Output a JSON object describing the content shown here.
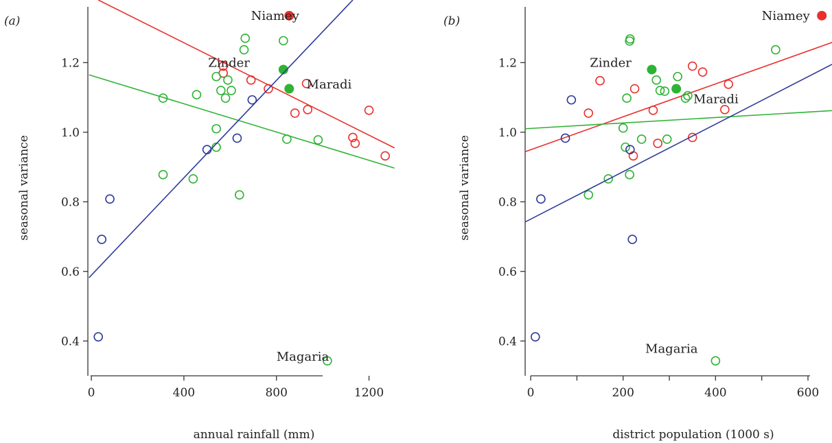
{
  "colors": {
    "red": "#e8302c",
    "green": "#2fb335",
    "blue": "#2e3a9a",
    "axis": "#333333"
  },
  "chart_data": [
    {
      "type": "scatter",
      "panel_label": "(a)",
      "xlabel": "annual rainfall (mm)",
      "ylabel": "seasonal variance",
      "xlim": [
        -15,
        1320
      ],
      "ylim": [
        0.3,
        1.38
      ],
      "xticks": [
        0,
        400,
        800,
        1200
      ],
      "yticks": [
        0.4,
        0.6,
        0.8,
        1.0,
        1.2
      ],
      "ytick_labels": [
        "0.4",
        "0.6",
        "0.8",
        "1.0",
        "1.2"
      ],
      "series": [
        {
          "color": "red",
          "points": [
            [
              570,
              1.19
            ],
            [
              570,
              1.17
            ],
            [
              690,
              1.15
            ],
            [
              765,
              1.125
            ],
            [
              930,
              1.14
            ],
            [
              880,
              1.055
            ],
            [
              935,
              1.065
            ],
            [
              1200,
              1.063
            ],
            [
              1130,
              0.985
            ],
            [
              1140,
              0.968
            ],
            [
              1270,
              0.932
            ]
          ],
          "filled_points": [
            [
              855,
              1.335
            ]
          ],
          "fit": [
            [
              30,
              1.38
            ],
            [
              1310,
              0.955
            ]
          ]
        },
        {
          "color": "green",
          "points": [
            [
              665,
              1.27
            ],
            [
              660,
              1.237
            ],
            [
              830,
              1.263
            ],
            [
              540,
              1.16
            ],
            [
              590,
              1.15
            ],
            [
              560,
              1.12
            ],
            [
              605,
              1.12
            ],
            [
              580,
              1.098
            ],
            [
              455,
              1.108
            ],
            [
              310,
              1.098
            ],
            [
              540,
              1.01
            ],
            [
              540,
              0.957
            ],
            [
              845,
              0.98
            ],
            [
              980,
              0.978
            ],
            [
              310,
              0.878
            ],
            [
              440,
              0.866
            ],
            [
              640,
              0.82
            ],
            [
              1020,
              0.343
            ]
          ],
          "filled_points": [
            [
              830,
              1.18
            ],
            [
              855,
              1.125
            ]
          ],
          "fit": [
            [
              -10,
              1.165
            ],
            [
              1310,
              0.897
            ]
          ]
        },
        {
          "color": "blue",
          "points": [
            [
              695,
              1.093
            ],
            [
              500,
              0.95
            ],
            [
              630,
              0.983
            ],
            [
              80,
              0.808
            ],
            [
              45,
              0.692
            ],
            [
              30,
              0.412
            ]
          ],
          "filled_points": [],
          "fit": [
            [
              -10,
              0.582
            ],
            [
              1130,
              1.38
            ]
          ]
        }
      ],
      "annotations": [
        {
          "text": "Niamey",
          "x": 690,
          "y": 1.335
        },
        {
          "text": "Zinder",
          "x": 505,
          "y": 1.2
        },
        {
          "text": "Maradi",
          "x": 930,
          "y": 1.138
        },
        {
          "text": "Magaria",
          "x": 800,
          "y": 0.355
        }
      ]
    },
    {
      "type": "scatter",
      "panel_label": "(b)",
      "xlabel": "district population (1000 s)",
      "ylabel": "seasonal variance",
      "xlim": [
        -12,
        652
      ],
      "ylim": [
        0.3,
        1.38
      ],
      "xticks": [
        0,
        200,
        400,
        600
      ],
      "minor_xticks": [
        100,
        300,
        500
      ],
      "yticks": [
        0.4,
        0.6,
        0.8,
        1.0,
        1.2
      ],
      "ytick_labels": [
        "0.4",
        "0.6",
        "0.8",
        "1.0",
        "1.2"
      ],
      "series": [
        {
          "color": "red",
          "points": [
            [
              150,
              1.148
            ],
            [
              225,
              1.125
            ],
            [
              125,
              1.055
            ],
            [
              265,
              1.063
            ],
            [
              350,
              1.19
            ],
            [
              372,
              1.173
            ],
            [
              428,
              1.138
            ],
            [
              420,
              1.065
            ],
            [
              275,
              0.968
            ],
            [
              350,
              0.985
            ],
            [
              222,
              0.932
            ]
          ],
          "filled_points": [
            [
              630,
              1.335
            ]
          ],
          "fit": [
            [
              -12,
              0.944
            ],
            [
              652,
              1.258
            ]
          ]
        },
        {
          "color": "green",
          "points": [
            [
              215,
              1.268
            ],
            [
              214,
              1.262
            ],
            [
              530,
              1.237
            ],
            [
              272,
              1.15
            ],
            [
              318,
              1.16
            ],
            [
              280,
              1.12
            ],
            [
              290,
              1.118
            ],
            [
              208,
              1.098
            ],
            [
              340,
              1.105
            ],
            [
              335,
              1.098
            ],
            [
              200,
              1.012
            ],
            [
              205,
              0.957
            ],
            [
              240,
              0.98
            ],
            [
              295,
              0.98
            ],
            [
              214,
              0.878
            ],
            [
              168,
              0.866
            ],
            [
              125,
              0.82
            ],
            [
              400,
              0.343
            ]
          ],
          "filled_points": [
            [
              262,
              1.18
            ],
            [
              315,
              1.125
            ]
          ],
          "fit": [
            [
              -12,
              1.01
            ],
            [
              652,
              1.062
            ]
          ]
        },
        {
          "color": "blue",
          "points": [
            [
              88,
              1.093
            ],
            [
              75,
              0.983
            ],
            [
              215,
              0.95
            ],
            [
              22,
              0.808
            ],
            [
              220,
              0.692
            ],
            [
              10,
              0.412
            ]
          ],
          "filled_points": [],
          "fit": [
            [
              -12,
              0.742
            ],
            [
              652,
              1.195
            ]
          ]
        }
      ],
      "annotations": [
        {
          "text": "Niamey",
          "x": 500,
          "y": 1.335
        },
        {
          "text": "Zinder",
          "x": 128,
          "y": 1.2
        },
        {
          "text": "Maradi",
          "x": 352,
          "y": 1.095
        },
        {
          "text": "Magaria",
          "x": 248,
          "y": 0.378
        }
      ]
    }
  ]
}
